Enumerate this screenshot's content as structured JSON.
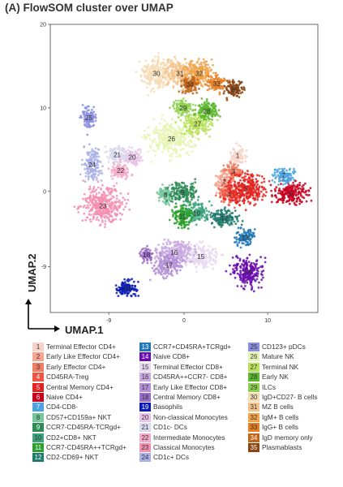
{
  "title": "(A) FlowSOM cluster over UMAP",
  "chart_data": {
    "type": "scatter",
    "xlabel": "UMAP.1",
    "ylabel": "UMAP.2",
    "xlim": [
      -16,
      16
    ],
    "ylim": [
      -14.5,
      20
    ],
    "x_ticks": [
      -9,
      0,
      10
    ],
    "y_ticks": [
      20,
      10,
      0,
      -9
    ],
    "legend_placement": "bottom",
    "clusters": [
      {
        "id": 1,
        "name": "Terminal Effector CD4+",
        "color": "#f7d2c8",
        "x": 6.4,
        "y": 4.3
      },
      {
        "id": 2,
        "name": "Early Like Effector CD4+",
        "color": "#f5a48f",
        "x": 4.8,
        "y": 1.2
      },
      {
        "id": 3,
        "name": "Early Effector CD4+",
        "color": "#f07d62",
        "x": 5.9,
        "y": 2.4
      },
      {
        "id": 4,
        "name": "CD45RA-Treg",
        "color": "#ee5544",
        "x": 5.4,
        "y": -0.3
      },
      {
        "id": 5,
        "name": "Central Memory CD4+",
        "color": "#e3231f",
        "x": 7.4,
        "y": 0.3
      },
      {
        "id": 6,
        "name": "Naive CD4+",
        "color": "#c8001e",
        "x": 12.8,
        "y": -0.3
      },
      {
        "id": 7,
        "name": "CD4-CD8-",
        "color": "#4aa3df",
        "x": 11.9,
        "y": 1.9
      },
      {
        "id": 8,
        "name": "CD57+CD159a+ NKT",
        "color": "#74c69d",
        "x": -2.2,
        "y": -0.4
      },
      {
        "id": 9,
        "name": "CCR7-CD45RA-TCRgd+",
        "color": "#2e8b57",
        "x": -0.2,
        "y": -0.1
      },
      {
        "id": 10,
        "name": "CD2+CD8+ NKT",
        "color": "#3aa37a",
        "x": 1.5,
        "y": -2.6
      },
      {
        "id": 11,
        "name": "CCR7-CD45RA++TCRgd+",
        "color": "#2ca02c",
        "x": -0.2,
        "y": -3.0
      },
      {
        "id": 12,
        "name": "CD2-CD69+ NKT",
        "color": "#1f7a6c",
        "x": 4.8,
        "y": -3.2
      },
      {
        "id": 13,
        "name": "CCR7+CD45RA+TCRgd+",
        "color": "#1f77b4",
        "x": 7.3,
        "y": -5.5
      },
      {
        "id": 14,
        "name": "Naive CD8+",
        "color": "#6a0dad",
        "x": 7.6,
        "y": -9.6
      },
      {
        "id": 15,
        "name": "Terminal Effector CD8+",
        "color": "#e6d8f0",
        "x": 2.0,
        "y": -7.8
      },
      {
        "id": 16,
        "name": "CD45RA++CCR7- CD8+",
        "color": "#c9a9e0",
        "x": -1.2,
        "y": -7.3
      },
      {
        "id": 17,
        "name": "Early Like Effector CD8+",
        "color": "#b48fd6",
        "x": -1.8,
        "y": -8.8
      },
      {
        "id": 18,
        "name": "Central Memory CD8+",
        "color": "#9b6cc9",
        "x": -4.5,
        "y": -7.6
      },
      {
        "id": 19,
        "name": "Basophils",
        "color": "#0a1bb5",
        "x": -6.8,
        "y": -11.6
      },
      {
        "id": 20,
        "name": "Non-classical Monocytes",
        "color": "#e9c4e9",
        "x": -6.2,
        "y": 4.1
      },
      {
        "id": 21,
        "name": "CD1c- DCs",
        "color": "#d9d9ef",
        "x": -8.0,
        "y": 4.4
      },
      {
        "id": 22,
        "name": "Intermediate Monocytes",
        "color": "#f4a9c8",
        "x": -7.6,
        "y": 2.5
      },
      {
        "id": 23,
        "name": "Classical Monocytes",
        "color": "#f48fb1",
        "x": -9.7,
        "y": -1.7
      },
      {
        "id": 24,
        "name": "CD1c+ DCs",
        "color": "#aab0e8",
        "x": -11.0,
        "y": 3.2
      },
      {
        "id": 25,
        "name": "CD123+ pDCs",
        "color": "#8a8fe0",
        "x": -11.4,
        "y": 8.8
      },
      {
        "id": 26,
        "name": "Mature NK",
        "color": "#e6f4b3",
        "x": -1.5,
        "y": 6.3
      },
      {
        "id": 27,
        "name": "Terminal NK",
        "color": "#b8e05a",
        "x": 1.6,
        "y": 8.1
      },
      {
        "id": 28,
        "name": "Early NK",
        "color": "#5cb82e",
        "x": 2.7,
        "y": 9.6
      },
      {
        "id": 29,
        "name": "ILCs",
        "color": "#8fd14f",
        "x": -0.1,
        "y": 10.0
      },
      {
        "id": 30,
        "name": "IgD+CD27- B cells",
        "color": "#f6dcb4",
        "x": -3.3,
        "y": 14.1
      },
      {
        "id": 31,
        "name": "MZ B cells",
        "color": "#f3c28a",
        "x": -0.5,
        "y": 14.1
      },
      {
        "id": 32,
        "name": "IgM+ B cells",
        "color": "#f0a34a",
        "x": 1.8,
        "y": 14.1
      },
      {
        "id": 33,
        "name": "IgG+ B cells",
        "color": "#e67e22",
        "x": 3.9,
        "y": 12.9
      },
      {
        "id": 34,
        "name": "IgD memory only",
        "color": "#c0651a",
        "x": 0.7,
        "y": 12.8
      },
      {
        "id": 35,
        "name": "Plasmablasts",
        "color": "#8b4513",
        "x": 6.0,
        "y": 12.2
      }
    ]
  }
}
